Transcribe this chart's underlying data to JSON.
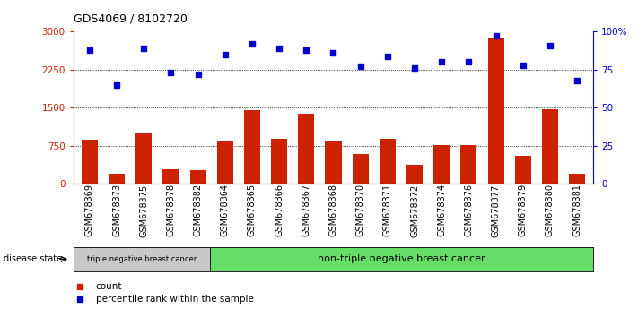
{
  "title": "GDS4069 / 8102720",
  "samples": [
    "GSM678369",
    "GSM678373",
    "GSM678375",
    "GSM678378",
    "GSM678382",
    "GSM678364",
    "GSM678365",
    "GSM678366",
    "GSM678367",
    "GSM678368",
    "GSM678370",
    "GSM678371",
    "GSM678372",
    "GSM678374",
    "GSM678376",
    "GSM678377",
    "GSM678379",
    "GSM678380",
    "GSM678381"
  ],
  "counts": [
    870,
    200,
    1020,
    280,
    270,
    830,
    1450,
    890,
    1380,
    830,
    580,
    890,
    380,
    760,
    760,
    2880,
    550,
    1470,
    200
  ],
  "percentiles": [
    88,
    65,
    89,
    73,
    72,
    85,
    92,
    89,
    88,
    86,
    77,
    84,
    76,
    80,
    80,
    97,
    78,
    91,
    68
  ],
  "group1_count": 5,
  "group1_label": "triple negative breast cancer",
  "group2_label": "non-triple negative breast cancer",
  "group1_color": "#c8c8c8",
  "group2_color": "#66dd66",
  "bar_color": "#cc2200",
  "dot_color": "#0000cc",
  "ylim_left": [
    0,
    3000
  ],
  "ylim_right": [
    0,
    100
  ],
  "yticks_left": [
    0,
    750,
    1500,
    2250,
    3000
  ],
  "yticks_right": [
    0,
    25,
    50,
    75,
    100
  ],
  "yticklabels_right": [
    "0",
    "25",
    "50",
    "75",
    "100%"
  ],
  "grid_color": "black",
  "disease_state_label": "disease state",
  "legend_count_label": "count",
  "legend_pct_label": "percentile rank within the sample",
  "background_color": "white"
}
